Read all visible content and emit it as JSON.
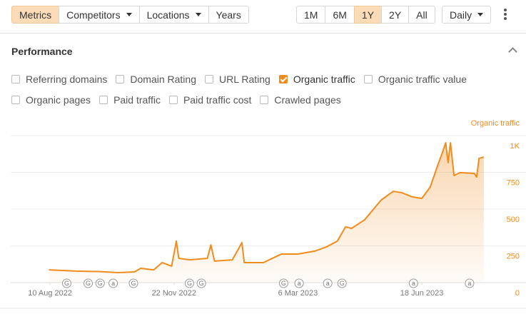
{
  "toolbar": {
    "tabs": [
      {
        "label": "Metrics",
        "active": true,
        "dropdown": false
      },
      {
        "label": "Competitors",
        "active": false,
        "dropdown": true
      },
      {
        "label": "Locations",
        "active": false,
        "dropdown": true
      },
      {
        "label": "Years",
        "active": false,
        "dropdown": false
      }
    ],
    "ranges": [
      {
        "label": "1M",
        "active": false
      },
      {
        "label": "6M",
        "active": false
      },
      {
        "label": "1Y",
        "active": true
      },
      {
        "label": "2Y",
        "active": false
      },
      {
        "label": "All",
        "active": false
      }
    ],
    "interval": "Daily"
  },
  "performance": {
    "title": "Performance",
    "metrics": [
      [
        {
          "label": "Referring domains",
          "checked": false
        },
        {
          "label": "Domain Rating",
          "checked": false
        },
        {
          "label": "URL Rating",
          "checked": false
        },
        {
          "label": "Organic traffic",
          "checked": true
        },
        {
          "label": "Organic traffic value",
          "checked": false
        }
      ],
      [
        {
          "label": "Organic pages",
          "checked": false
        },
        {
          "label": "Paid traffic",
          "checked": false
        },
        {
          "label": "Paid traffic cost",
          "checked": false
        },
        {
          "label": "Crawled pages",
          "checked": false
        }
      ]
    ]
  },
  "chart_data": {
    "type": "line",
    "y_label": "Organic traffic",
    "grid": true,
    "x": [
      "2022-08-09",
      "2022-09-01",
      "2022-09-20",
      "2022-10-06",
      "2022-10-20",
      "2022-10-25",
      "2022-11-05",
      "2022-11-12",
      "2022-11-20",
      "2022-11-24",
      "2022-11-26",
      "2022-12-05",
      "2022-12-20",
      "2022-12-23",
      "2022-12-26",
      "2023-01-10",
      "2023-01-18",
      "2023-01-20",
      "2023-02-05",
      "2023-02-20",
      "2023-03-06",
      "2023-03-20",
      "2023-03-30",
      "2023-04-08",
      "2023-04-15",
      "2023-04-20",
      "2023-05-01",
      "2023-05-10",
      "2023-05-15",
      "2023-05-25",
      "2023-06-01",
      "2023-06-10",
      "2023-06-18",
      "2023-06-25",
      "2023-07-01",
      "2023-07-05",
      "2023-07-08",
      "2023-07-10",
      "2023-07-12",
      "2023-07-15",
      "2023-07-20",
      "2023-08-01",
      "2023-08-03",
      "2023-08-05",
      "2023-08-09"
    ],
    "series": [
      {
        "name": "Organic traffic",
        "color": "#f08c1e",
        "values": [
          87,
          78,
          75,
          68,
          73,
          97,
          87,
          136,
          112,
          282,
          165,
          155,
          165,
          257,
          146,
          155,
          272,
          136,
          136,
          194,
          194,
          214,
          243,
          282,
          379,
          369,
          427,
          515,
          563,
          621,
          612,
          583,
          573,
          650,
          791,
          879,
          951,
          816,
          951,
          728,
          748,
          743,
          718,
          845,
          854
        ]
      }
    ],
    "xlim": [
      "2022-07-08",
      "2023-09-08"
    ],
    "xticks": [
      {
        "value": "2022-08-10",
        "label": "10 Aug 2022"
      },
      {
        "value": "2022-11-22",
        "label": "22 Nov 2022"
      },
      {
        "value": "2023-03-06",
        "label": "6 Mar 2023"
      },
      {
        "value": "2023-06-18",
        "label": "18 Jun 2023"
      }
    ],
    "ylim": [
      0,
      1000
    ],
    "yticks": [
      0,
      250,
      500,
      750,
      {
        "value": 1000,
        "label": "1K"
      }
    ],
    "annotations": [
      {
        "label": "G",
        "x": "2022-08-24"
      },
      {
        "label": "G",
        "x": "2022-09-11"
      },
      {
        "label": "G",
        "x": "2022-09-21"
      },
      {
        "label": "a",
        "x": "2022-10-02"
      },
      {
        "label": "G",
        "x": "2022-10-19"
      },
      {
        "label": "G",
        "x": "2022-12-05"
      },
      {
        "label": "G",
        "x": "2022-12-15"
      },
      {
        "label": "G",
        "x": "2023-02-22"
      },
      {
        "label": "a",
        "x": "2023-03-07"
      },
      {
        "label": "a",
        "x": "2023-03-31"
      },
      {
        "label": "G",
        "x": "2023-04-12"
      },
      {
        "label": "a",
        "x": "2023-06-11"
      },
      {
        "label": "a",
        "x": "2023-07-28"
      }
    ]
  }
}
